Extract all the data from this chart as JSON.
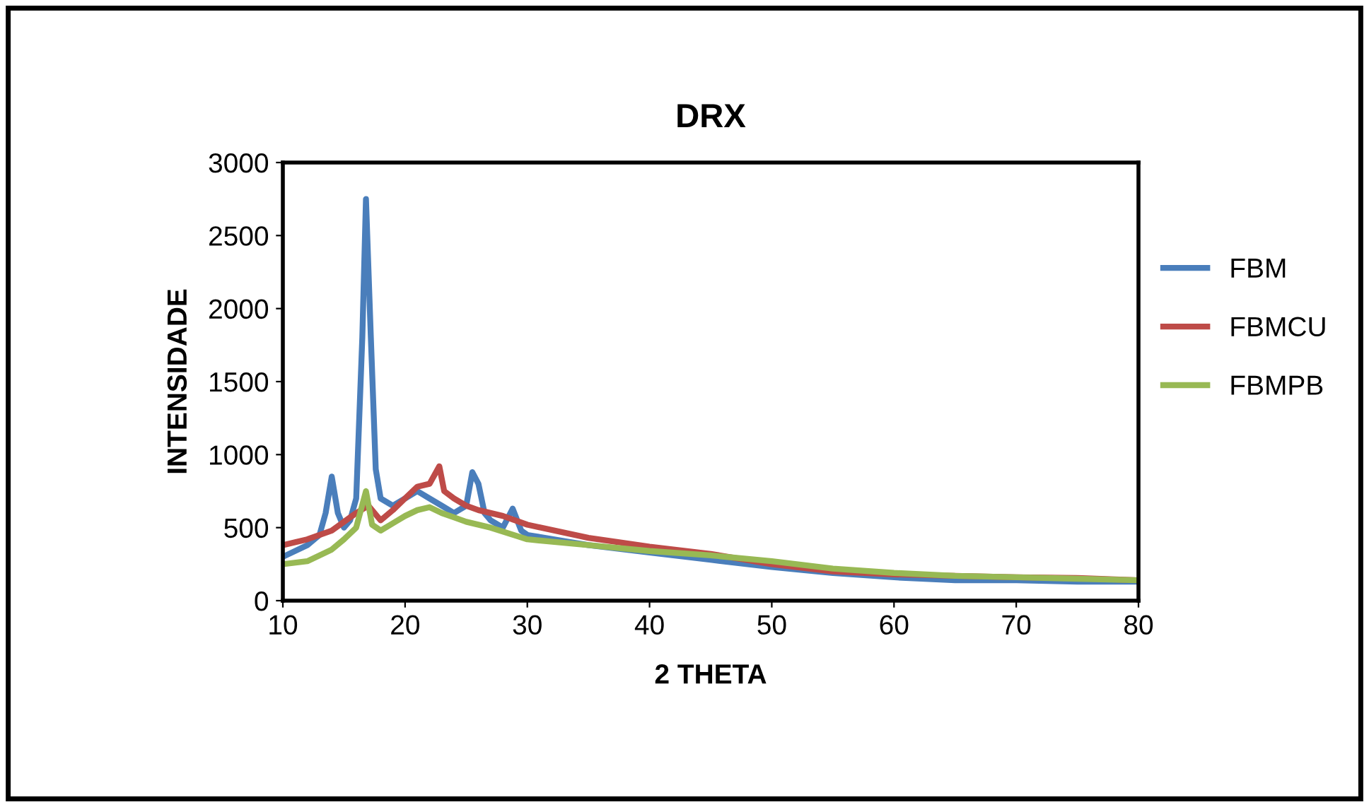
{
  "chart_data": {
    "type": "line",
    "title": "DRX",
    "xlabel": "2 THETA",
    "ylabel": "INTENSIDADE",
    "xlim": [
      10,
      80
    ],
    "xticks": [
      10,
      20,
      30,
      40,
      50,
      60,
      70,
      80
    ],
    "ylim": [
      0,
      3000
    ],
    "yticks": [
      0,
      500,
      1000,
      1500,
      2000,
      2500,
      3000
    ],
    "grid": false,
    "legend": "right",
    "marker": "none",
    "line_style": "solid",
    "series": [
      {
        "name": "FBM",
        "color": "#4a7ebb",
        "x": [
          10,
          12,
          13,
          13.5,
          14,
          14.5,
          15,
          15.5,
          16,
          16.5,
          16.8,
          17.2,
          17.6,
          18,
          19,
          20,
          21,
          22,
          23,
          24,
          25,
          25.5,
          26,
          26.5,
          27,
          28,
          28.8,
          29.5,
          30,
          35,
          40,
          45,
          50,
          55,
          60,
          65,
          70,
          75,
          80
        ],
        "values": [
          300,
          380,
          450,
          600,
          850,
          600,
          500,
          550,
          700,
          1800,
          2750,
          1800,
          900,
          700,
          650,
          700,
          750,
          700,
          650,
          600,
          650,
          880,
          800,
          600,
          550,
          500,
          630,
          480,
          450,
          380,
          330,
          280,
          230,
          190,
          160,
          140,
          140,
          130,
          130
        ]
      },
      {
        "name": "FBMCU",
        "color": "#be4b48",
        "x": [
          10,
          12,
          14,
          16,
          17,
          18,
          19,
          20,
          21,
          22,
          22.8,
          23.2,
          24,
          25,
          26,
          28,
          30,
          35,
          40,
          45,
          50,
          55,
          60,
          65,
          70,
          75,
          80
        ],
        "values": [
          380,
          420,
          480,
          600,
          650,
          550,
          620,
          700,
          780,
          800,
          920,
          750,
          700,
          650,
          620,
          580,
          520,
          430,
          370,
          320,
          250,
          200,
          180,
          170,
          160,
          155,
          140
        ]
      },
      {
        "name": "FBMPB",
        "color": "#98b954",
        "x": [
          10,
          12,
          14,
          15,
          16,
          16.8,
          17.3,
          18,
          19,
          20,
          21,
          22,
          23,
          24,
          25,
          27,
          30,
          35,
          40,
          45,
          50,
          55,
          60,
          65,
          70,
          75,
          80
        ],
        "values": [
          250,
          270,
          350,
          420,
          500,
          750,
          520,
          480,
          530,
          580,
          620,
          640,
          600,
          570,
          540,
          500,
          420,
          380,
          340,
          310,
          270,
          220,
          190,
          170,
          160,
          150,
          140
        ]
      }
    ]
  }
}
